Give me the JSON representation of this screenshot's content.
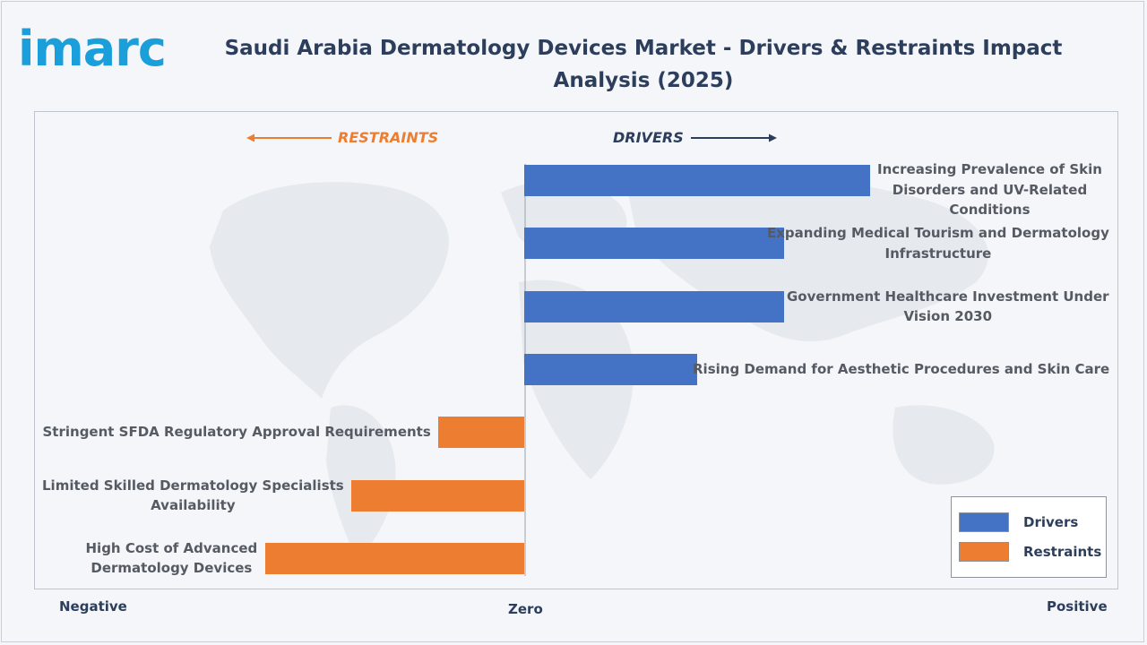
{
  "logo": {
    "text": "imarc"
  },
  "title": "Saudi Arabia Dermatology Devices Market - Drivers & Restraints Impact Analysis (2025)",
  "chart_data": {
    "type": "bar",
    "orientation": "horizontal",
    "title": "Saudi Arabia Dermatology Devices Market - Drivers & Restraints Impact Analysis (2025)",
    "direction_labels": {
      "negative": "RESTRAINTS",
      "positive": "DRIVERS"
    },
    "axis_labels": {
      "left": "Negative",
      "center": "Zero",
      "right": "Positive"
    },
    "xlim": [
      -3,
      4
    ],
    "grid": false,
    "legend_position": "bottom-right",
    "series": [
      {
        "name": "Drivers",
        "color": "#4472c4"
      },
      {
        "name": "Restraints",
        "color": "#ed7d31"
      }
    ],
    "categories": [
      {
        "label_lines": [
          "Increasing Prevalence of Skin",
          "Disorders and UV-Related",
          "Conditions"
        ],
        "value": 4.0,
        "series": "Drivers"
      },
      {
        "label_lines": [
          "Expanding Medical Tourism and Dermatology",
          "Infrastructure"
        ],
        "value": 3.0,
        "series": "Drivers"
      },
      {
        "label_lines": [
          "Government Healthcare Investment Under",
          "Vision 2030"
        ],
        "value": 3.0,
        "series": "Drivers"
      },
      {
        "label_lines": [
          "Rising Demand for Aesthetic Procedures and Skin Care"
        ],
        "value": 2.0,
        "series": "Drivers"
      },
      {
        "label_lines": [
          "Stringent SFDA Regulatory Approval Requirements"
        ],
        "value": -1.0,
        "series": "Restraints"
      },
      {
        "label_lines": [
          "Limited Skilled Dermatology Specialists",
          "Availability"
        ],
        "value": -2.0,
        "series": "Restraints"
      },
      {
        "label_lines": [
          "High Cost of Advanced",
          "Dermatology Devices"
        ],
        "value": -3.0,
        "series": "Restraints"
      }
    ]
  }
}
